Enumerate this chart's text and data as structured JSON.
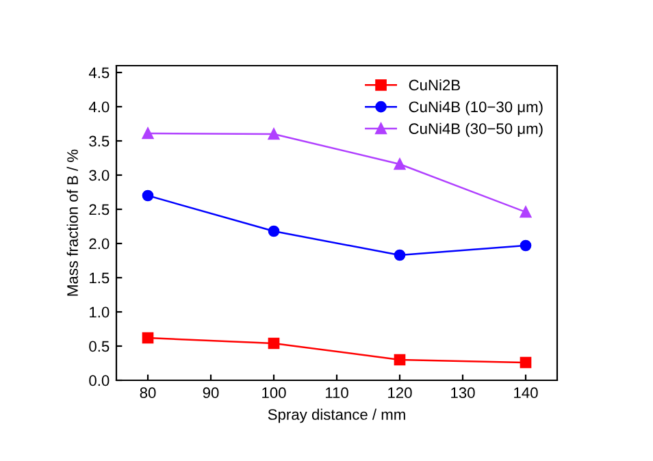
{
  "chart_data": {
    "type": "line",
    "xlabel": "Spray distance / mm",
    "ylabel": "Mass fraction of B / %",
    "x": [
      80,
      100,
      120,
      140
    ],
    "series": [
      {
        "name": "CuNi2B",
        "color": "#ff0000",
        "marker": "square",
        "values": [
          0.62,
          0.54,
          0.3,
          0.26
        ]
      },
      {
        "name": "CuNi4B (10−30 μm)",
        "color": "#0000ff",
        "marker": "circle",
        "values": [
          2.7,
          2.18,
          1.83,
          1.97
        ]
      },
      {
        "name": "CuNi4B (30−50 μm)",
        "color": "#b040ff",
        "marker": "triangle",
        "values": [
          3.61,
          3.6,
          3.16,
          2.46
        ]
      }
    ],
    "xlim": [
      75,
      145
    ],
    "xticks": [
      80,
      90,
      100,
      110,
      120,
      130,
      140
    ],
    "ylim": [
      0,
      4.6
    ],
    "yticks": [
      {
        "value": 0,
        "label": "0.0"
      },
      0.5,
      {
        "value": 1,
        "label": "1.0"
      },
      1.5,
      {
        "value": 2,
        "label": "2.0"
      },
      2.5,
      {
        "value": 3,
        "label": "3.0"
      },
      3.5,
      {
        "value": 4,
        "label": "4.0"
      },
      4.5
    ],
    "grid": false,
    "legend": "top right",
    "line_style": "solid"
  }
}
